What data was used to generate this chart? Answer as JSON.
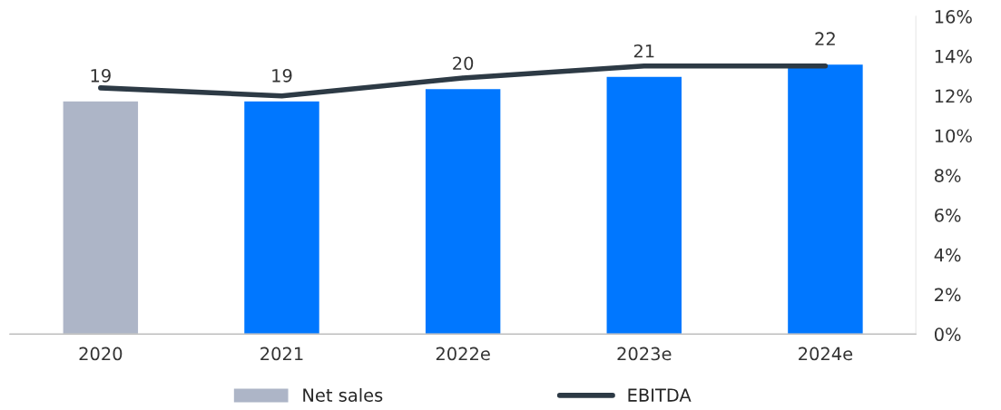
{
  "chart_data": {
    "type": "bar",
    "categories": [
      "2020",
      "2021",
      "2022e",
      "2023e",
      "2024e"
    ],
    "series": [
      {
        "name": "Net sales",
        "color": "#adb5c7",
        "colors": [
          "#adb5c7",
          "#0077ff",
          "#0077ff",
          "#0077ff",
          "#0077ff"
        ],
        "values": [
          19,
          19,
          20,
          21,
          22
        ],
        "value_labels": [
          "19",
          "19",
          "20",
          "21",
          "22"
        ]
      },
      {
        "name": "EBITDA",
        "type": "line",
        "axis": "y2",
        "color": "#2d3a45",
        "values": [
          12.4,
          12.0,
          12.9,
          13.5,
          13.5
        ]
      }
    ],
    "y2lim": [
      0,
      16
    ],
    "y2ticks": [
      {
        "value": 0,
        "label": "0%"
      },
      {
        "value": 2,
        "label": "2%"
      },
      {
        "value": 4,
        "label": "4%"
      },
      {
        "value": 6,
        "label": "6%"
      },
      {
        "value": 8,
        "label": "8%"
      },
      {
        "value": 10,
        "label": "10%"
      },
      {
        "value": 12,
        "label": "12%"
      },
      {
        "value": 14,
        "label": "14%"
      },
      {
        "value": 16,
        "label": "16%"
      }
    ],
    "grid": false,
    "legend": "bottom",
    "marker": "none",
    "line_style": "solid"
  }
}
